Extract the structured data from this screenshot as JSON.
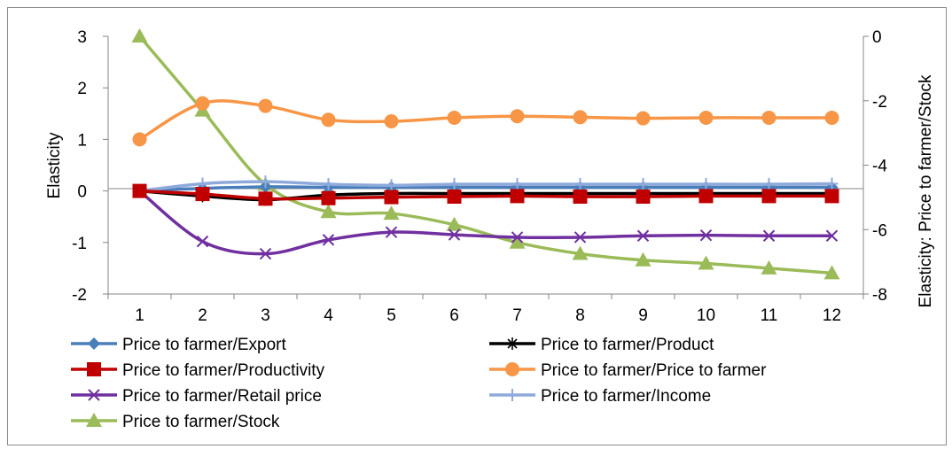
{
  "chart_data": {
    "type": "line",
    "title": "",
    "xlabel": "",
    "ylabel": "Elasticity",
    "y2label": "Elasticity: Price to farmer/Stock",
    "categories": [
      "1",
      "2",
      "3",
      "4",
      "5",
      "6",
      "7",
      "8",
      "9",
      "10",
      "11",
      "12"
    ],
    "ylim": [
      -2,
      3
    ],
    "yticks": [
      "3",
      "2",
      "1",
      "0",
      "-1",
      "-2"
    ],
    "y2lim": [
      -8,
      0
    ],
    "y2ticks": [
      "0",
      "-2",
      "-4",
      "-6",
      "-8"
    ],
    "grid": false,
    "legend_position": "bottom",
    "series": [
      {
        "name": "Price to farmer/Export",
        "axis": "left",
        "color": "#4a7ebb",
        "marker": "diamond",
        "values": [
          0,
          0.05,
          0.08,
          0.07,
          0.07,
          0.07,
          0.07,
          0.07,
          0.07,
          0.07,
          0.07,
          0.07
        ]
      },
      {
        "name": "Price to farmer/Product",
        "axis": "left",
        "color": "#000000",
        "marker": "asterisk",
        "values": [
          0,
          -0.1,
          -0.17,
          -0.08,
          -0.05,
          -0.05,
          -0.05,
          -0.05,
          -0.05,
          -0.05,
          -0.05,
          -0.05
        ]
      },
      {
        "name": "Price to farmer/Productivity",
        "axis": "left",
        "color": "#c00000",
        "marker": "square",
        "values": [
          0,
          -0.06,
          -0.15,
          -0.14,
          -0.12,
          -0.11,
          -0.1,
          -0.11,
          -0.11,
          -0.1,
          -0.1,
          -0.1
        ]
      },
      {
        "name": "Price to farmer/Price to farmer",
        "axis": "left",
        "color": "#f79646",
        "marker": "circle",
        "values": [
          1.0,
          1.7,
          1.65,
          1.38,
          1.35,
          1.42,
          1.45,
          1.43,
          1.41,
          1.42,
          1.42,
          1.42
        ]
      },
      {
        "name": "Price to farmer/Retail price",
        "axis": "left",
        "color": "#7030a0",
        "marker": "x",
        "values": [
          0,
          -0.98,
          -1.22,
          -0.95,
          -0.8,
          -0.85,
          -0.9,
          -0.9,
          -0.87,
          -0.86,
          -0.87,
          -0.87
        ]
      },
      {
        "name": "Price to farmer/Income",
        "axis": "left",
        "color": "#8eaadb",
        "marker": "plus",
        "values": [
          0,
          0.14,
          0.18,
          0.13,
          0.11,
          0.13,
          0.13,
          0.13,
          0.13,
          0.13,
          0.13,
          0.14
        ]
      },
      {
        "name": "Price to farmer/Stock",
        "axis": "right",
        "color": "#9bbb59",
        "marker": "triangle",
        "values": [
          0,
          -2.3,
          -4.6,
          -5.45,
          -5.5,
          -5.85,
          -6.4,
          -6.75,
          -6.95,
          -7.05,
          -7.2,
          -7.35
        ]
      }
    ]
  }
}
